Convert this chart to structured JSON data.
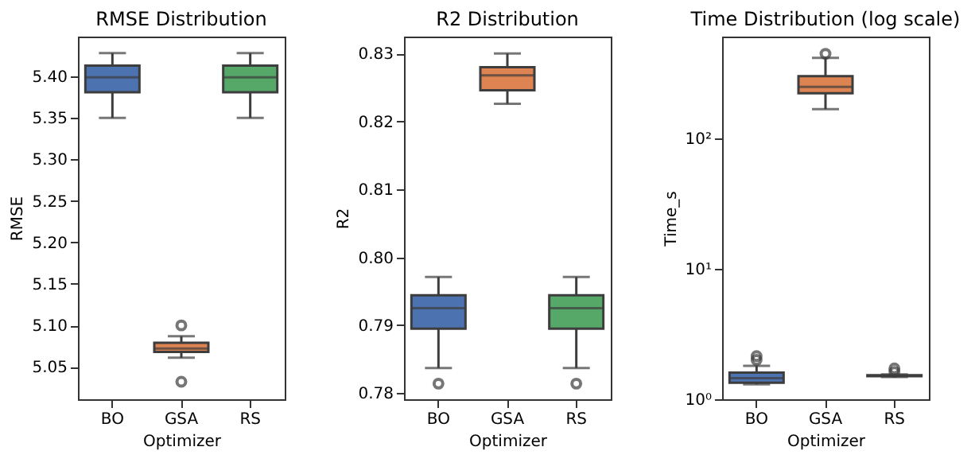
{
  "chart_data": [
    {
      "type": "box",
      "title": "RMSE Distribution",
      "xlabel": "Optimizer",
      "ylabel": "RMSE",
      "categories": [
        "BO",
        "GSA",
        "RS"
      ],
      "colors": [
        "#4c72b0",
        "#dd8452",
        "#55a868"
      ],
      "boxes": [
        {
          "low": 5.35,
          "q1": 5.381,
          "median": 5.399,
          "q3": 5.413,
          "high": 5.428
        },
        {
          "low": 5.061,
          "q1": 5.068,
          "median": 5.072,
          "q3": 5.079,
          "high": 5.087,
          "outliers": [
            5.1,
            5.032
          ]
        },
        {
          "low": 5.35,
          "q1": 5.381,
          "median": 5.399,
          "q3": 5.413,
          "high": 5.428
        }
      ],
      "ylim": [
        5.011,
        5.448
      ],
      "yticks": [
        5.05,
        {
          "value": 5.1,
          "label": "5.10"
        },
        5.15,
        {
          "value": 5.2,
          "label": "5.20"
        },
        5.25,
        {
          "value": 5.3,
          "label": "5.30"
        },
        5.35,
        {
          "value": 5.4,
          "label": "5.40"
        }
      ],
      "grid": false
    },
    {
      "type": "box",
      "title": "R2 Distribution",
      "xlabel": "Optimizer",
      "ylabel": "R2",
      "categories": [
        "BO",
        "GSA",
        "RS"
      ],
      "colors": [
        "#4c72b0",
        "#dd8452",
        "#55a868"
      ],
      "boxes": [
        {
          "low": 0.7837,
          "q1": 0.7895,
          "median": 0.7925,
          "q3": 0.7944,
          "high": 0.7971,
          "outliers": [
            0.7814
          ]
        },
        {
          "low": 0.8226,
          "q1": 0.8246,
          "median": 0.8268,
          "q3": 0.828,
          "high": 0.83
        },
        {
          "low": 0.7837,
          "q1": 0.7895,
          "median": 0.7925,
          "q3": 0.7944,
          "high": 0.7971,
          "outliers": [
            0.7814
          ]
        }
      ],
      "ylim": [
        0.7791,
        0.8325
      ],
      "yticks": [
        0.78,
        0.79,
        {
          "value": 0.8,
          "label": "0.80"
        },
        0.81,
        0.82,
        0.83
      ],
      "grid": false
    },
    {
      "type": "box",
      "title": "Time Distribution (log scale)",
      "xlabel": "Optimizer",
      "ylabel": "Time_s",
      "categories": [
        "BO",
        "GSA",
        "RS"
      ],
      "colors": [
        "#4c72b0",
        "#dd8452",
        "#55a868"
      ],
      "log": true,
      "boxes": [
        {
          "low": 1.3,
          "q1": 1.34,
          "median": 1.45,
          "q3": 1.6,
          "high": 1.8,
          "outliers": [
            2.14,
            2.0
          ]
        },
        {
          "low": 167,
          "q1": 221,
          "median": 247,
          "q3": 299,
          "high": 412,
          "outliers": [
            443
          ]
        },
        {
          "low": 1.48,
          "q1": 1.5,
          "median": 1.51,
          "q3": 1.53,
          "high": 1.55,
          "outliers": [
            1.72,
            1.62
          ]
        }
      ],
      "ylim": [
        1,
        600
      ],
      "yticks": [
        {
          "value": 1,
          "label": "10⁰"
        },
        {
          "value": 10,
          "label": "10¹"
        },
        {
          "value": 100,
          "label": "10²"
        }
      ],
      "grid": false
    }
  ]
}
